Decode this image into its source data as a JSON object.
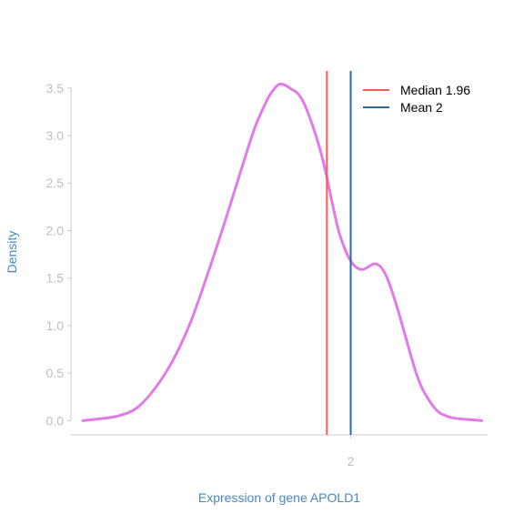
{
  "chart_data": {
    "type": "line",
    "title": "",
    "xlabel": "Expression of gene APOLD1",
    "ylabel": "Density",
    "x_ticks": [
      2
    ],
    "x_tick_labels": [
      "2"
    ],
    "y_ticks": [
      0,
      0.5,
      1,
      1.5,
      2,
      2.5,
      3,
      3.5
    ],
    "y_tick_labels": [
      "0.0",
      "0.5",
      "1.0",
      "1.5",
      "2.0",
      "2.5",
      "3.0",
      "3.5"
    ],
    "xlim": [
      1.53,
      2.23
    ],
    "ylim": [
      -0.15,
      3.68
    ],
    "grid": false,
    "legend_position": "top-right",
    "series": [
      {
        "type": "density",
        "color": "#e07be8",
        "x": [
          1.55,
          1.58,
          1.61,
          1.64,
          1.67,
          1.7,
          1.73,
          1.76,
          1.79,
          1.82,
          1.84,
          1.86,
          1.87,
          1.88,
          1.89,
          1.9,
          1.91,
          1.92,
          1.93,
          1.94,
          1.95,
          1.96,
          1.97,
          1.98,
          1.99,
          2.0,
          2.01,
          2.02,
          2.03,
          2.04,
          2.05,
          2.06,
          2.07,
          2.08,
          2.09,
          2.1,
          2.11,
          2.12,
          2.13,
          2.14,
          2.15,
          2.17,
          2.2,
          2.22
        ],
        "y": [
          0.0,
          0.02,
          0.05,
          0.13,
          0.33,
          0.62,
          1.02,
          1.55,
          2.12,
          2.72,
          3.1,
          3.38,
          3.48,
          3.54,
          3.53,
          3.49,
          3.45,
          3.36,
          3.21,
          3.03,
          2.82,
          2.56,
          2.26,
          1.99,
          1.81,
          1.68,
          1.61,
          1.59,
          1.62,
          1.65,
          1.62,
          1.52,
          1.35,
          1.15,
          0.93,
          0.71,
          0.5,
          0.34,
          0.23,
          0.14,
          0.08,
          0.03,
          0.01,
          0.0
        ]
      }
    ],
    "vlines": [
      {
        "name": "Median 1.96",
        "x": 1.96,
        "color": "#f35e5a"
      },
      {
        "name": "Mean 2",
        "x": 2.0,
        "color": "#2c6d99"
      }
    ]
  }
}
